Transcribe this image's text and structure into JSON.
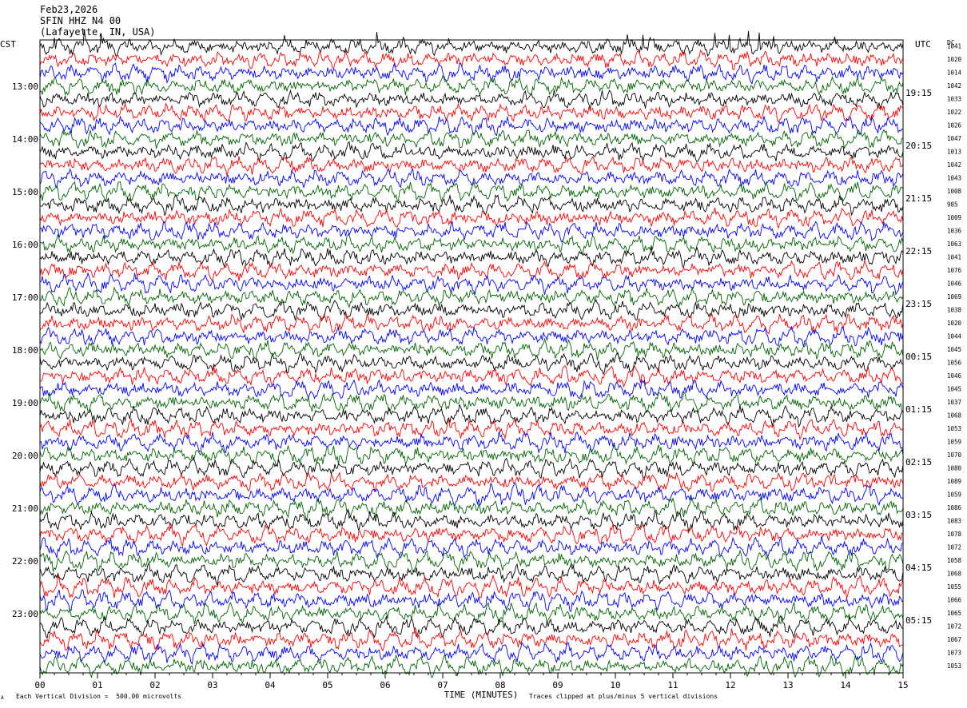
{
  "header": {
    "date": "Feb23,2026",
    "station": "SFIN HHZ N4 00",
    "location": "(Lafayette, IN, USA)"
  },
  "left_axis_label": "CST",
  "right_axis_label": "UTC",
  "dc_label": "DC",
  "footer": {
    "scale": "Each Vertical Division =  500.00 microvolts",
    "clip": "Traces clipped at plus/minus 5 vertical divisions",
    "corner_mark": "A"
  },
  "colors": {
    "cycle": [
      "#000000",
      "#ff0000",
      "#0000ff",
      "#006400"
    ],
    "grid": "#000000"
  },
  "chart_data": {
    "type": "line",
    "xlabel": "TIME (MINUTES)",
    "x_range": [
      0,
      15
    ],
    "x_ticks": [
      "00",
      "01",
      "02",
      "03",
      "04",
      "05",
      "06",
      "07",
      "08",
      "09",
      "10",
      "11",
      "12",
      "13",
      "14",
      "15"
    ],
    "trace_minutes": 15,
    "trace_count": 48,
    "first_trace_cst": "12:15",
    "left_ticks": [
      {
        "label": "13:00",
        "trace": 3
      },
      {
        "label": "14:00",
        "trace": 7
      },
      {
        "label": "15:00",
        "trace": 11
      },
      {
        "label": "16:00",
        "trace": 15
      },
      {
        "label": "17:00",
        "trace": 19
      },
      {
        "label": "18:00",
        "trace": 23
      },
      {
        "label": "19:00",
        "trace": 27
      },
      {
        "label": "20:00",
        "trace": 31
      },
      {
        "label": "21:00",
        "trace": 35
      },
      {
        "label": "22:00",
        "trace": 39
      },
      {
        "label": "23:00",
        "trace": 43
      }
    ],
    "right_ticks": [
      {
        "label": "19:15",
        "trace": 4
      },
      {
        "label": "20:15",
        "trace": 8
      },
      {
        "label": "21:15",
        "trace": 12
      },
      {
        "label": "22:15",
        "trace": 16
      },
      {
        "label": "23:15",
        "trace": 20
      },
      {
        "label": "00:15",
        "trace": 24
      },
      {
        "label": "01:15",
        "trace": 28
      },
      {
        "label": "02:15",
        "trace": 32
      },
      {
        "label": "03:15",
        "trace": 36
      },
      {
        "label": "04:15",
        "trace": 40
      },
      {
        "label": "05:15",
        "trace": 44
      }
    ],
    "dc_offsets": [
      1041,
      1020,
      1014,
      1042,
      1033,
      1022,
      1026,
      1047,
      1013,
      1042,
      1043,
      1008,
      985,
      1009,
      1036,
      1063,
      1041,
      1076,
      1046,
      1069,
      1038,
      1020,
      1044,
      1045,
      1056,
      1046,
      1045,
      1037,
      1068,
      1053,
      1059,
      1070,
      1080,
      1089,
      1059,
      1086,
      1083,
      1078,
      1072,
      1058,
      1068,
      1055,
      1066,
      1065,
      1072,
      1067,
      1073,
      1053
    ],
    "amplitude_scale_microvolts_per_division": 500,
    "clip_divisions": 5
  }
}
